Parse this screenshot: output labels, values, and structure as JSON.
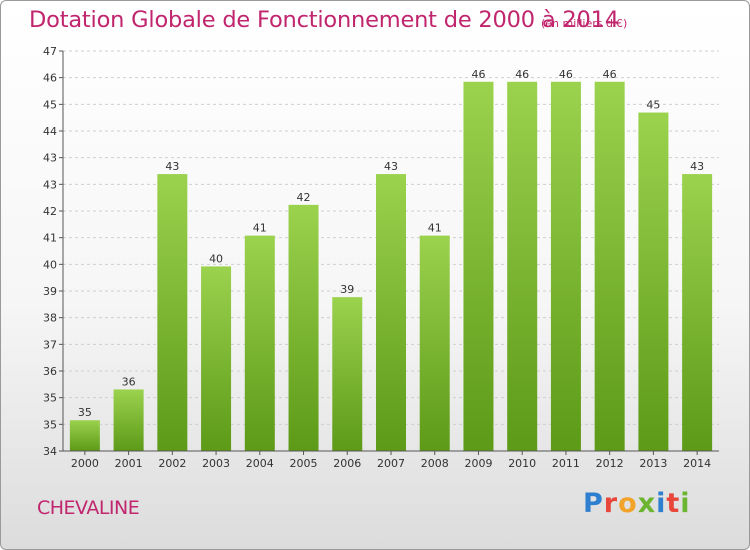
{
  "header": {
    "title": "Dotation Globale de Fonctionnement de 2000 à 2014",
    "subtitle": "(en milliers d'€)"
  },
  "footer": {
    "commune": "CHEVALINE",
    "logo": {
      "text": "Proxiti",
      "letters": [
        {
          "ch": "P",
          "color": "#2e7fd0"
        },
        {
          "ch": "r",
          "color": "#e8463a"
        },
        {
          "ch": "o",
          "color": "#f2a42a"
        },
        {
          "ch": "x",
          "color": "#6bb530"
        },
        {
          "ch": "i",
          "color": "#2e7fd0"
        },
        {
          "ch": "t",
          "color": "#e8463a"
        },
        {
          "ch": "i",
          "color": "#6bb530"
        }
      ]
    }
  },
  "chart_data": {
    "type": "bar",
    "title": "Dotation Globale de Fonctionnement de 2000 à 2014",
    "subtitle": "(en milliers d'€)",
    "categories": [
      "2000",
      "2001",
      "2002",
      "2003",
      "2004",
      "2005",
      "2006",
      "2007",
      "2008",
      "2009",
      "2010",
      "2011",
      "2012",
      "2013",
      "2014"
    ],
    "values": [
      35,
      36,
      43,
      40,
      41,
      42,
      39,
      43,
      41,
      46,
      46,
      46,
      46,
      45,
      43
    ],
    "ytick_labels": [
      "34",
      "35",
      "35",
      "36",
      "37",
      "38",
      "39",
      "40",
      "41",
      "42",
      "43",
      "43",
      "44",
      "45",
      "46",
      "47"
    ],
    "ylim": [
      34,
      47
    ],
    "xlabel": "",
    "ylabel": "",
    "grid": "horizontal-dashed",
    "legend": "none",
    "colors": {
      "bar_top": "#9bd24e",
      "bar_bottom": "#5c9a17",
      "grid": "#cfcfcf",
      "axis": "#555555"
    }
  }
}
